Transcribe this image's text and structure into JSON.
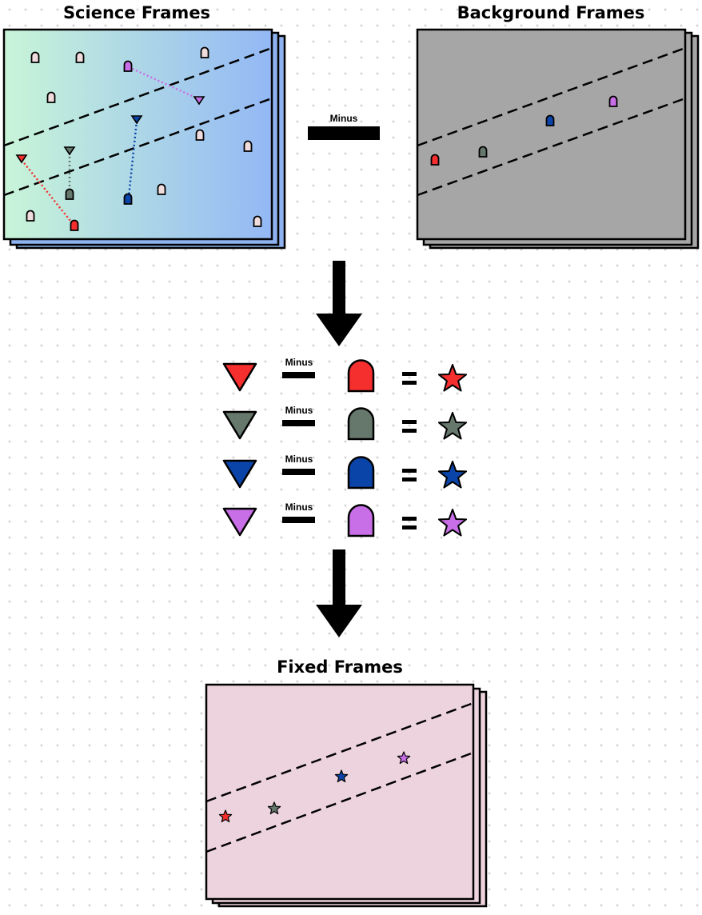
{
  "titles": {
    "science": "Science Frames",
    "background": "Background Frames",
    "fixed": "Fixed Frames"
  },
  "operator_label": "Minus",
  "equation_rows": [
    {
      "name": "red",
      "color": "#f52e2e"
    },
    {
      "name": "gray",
      "color": "#66786c"
    },
    {
      "name": "blue",
      "color": "#0a44a8"
    },
    {
      "name": "purple",
      "color": "#c86ee6"
    }
  ],
  "colors": {
    "science_gradient_start": "#c8f5d8",
    "science_gradient_end": "#93b8f5",
    "science_back_layer": "#8eb2f0",
    "background_frame": "#a6a6a6",
    "fixed_frame": "#edd3dd",
    "other_sources": "#f0dcdc"
  },
  "icons": {
    "background_source": "arch-icon",
    "science_source": "triangle-icon",
    "fixed_source": "star-icon"
  }
}
